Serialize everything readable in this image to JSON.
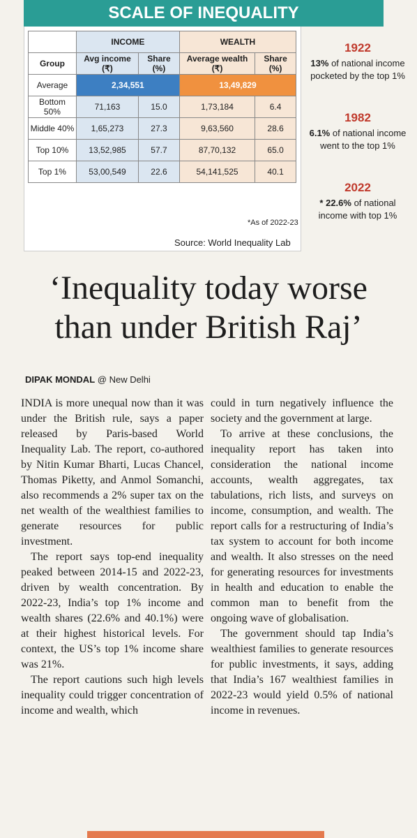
{
  "header": {
    "title": "SCALE OF INEQUALITY"
  },
  "table": {
    "group_headers": [
      "INCOME",
      "WEALTH"
    ],
    "columns": [
      "Group",
      "Avg income (₹)",
      "Share (%)",
      "Average wealth (₹)",
      "Share (%)"
    ],
    "average": {
      "label": "Average",
      "income": "2,34,551",
      "wealth": "13,49,829"
    },
    "rows": [
      [
        "Bottom 50%",
        "71,163",
        "15.0",
        "1,73,184",
        "6.4"
      ],
      [
        "Middle 40%",
        "1,65,273",
        "27.3",
        "9,63,560",
        "28.6"
      ],
      [
        "Top 10%",
        "13,52,985",
        "57.7",
        "87,70,132",
        "65.0"
      ],
      [
        "Top 1%",
        "53,00,549",
        "22.6",
        "54,141,525",
        "40.1"
      ]
    ],
    "note": "*As of 2022-23",
    "source": "Source: World Inequality Lab"
  },
  "sidebar": [
    {
      "year": "1922",
      "highlight": "13%",
      "text": " of national income pocketed by the top 1%"
    },
    {
      "year": "1982",
      "highlight": "6.1%",
      "text": " of national income went to the top 1%"
    },
    {
      "year": "2022",
      "highlight": "* 22.6%",
      "text": " of national income with top 1%"
    }
  ],
  "headline": {
    "lines": [
      "‘Inequality today worse",
      "than under British Raj’"
    ]
  },
  "byline": {
    "author": "DIPAK MONDAL",
    "location": "@ New Delhi"
  },
  "columns": [
    {
      "paragraphs": [
        "INDIA is more unequal now than it was under the British rule, says a paper released by Paris-based World Inequality Lab. The report, co-authored by Nitin Kumar Bharti, Lucas Chancel, Thomas Piketty, and Anmol Somanchi, also recommends a 2% super tax on the net wealth of the wealthiest families to generate resources for public investment.",
        "The report says top-end inequality peaked between 2014-15 and 2022-23, driven by wealth concentration. By 2022-23, India’s top 1% income and wealth shares (22.6% and 40.1%) were at their highest historical levels. For context, the US’s top 1% income share was 21%.",
        "The report cautions such high levels inequality could trigger concentration of income and wealth, which"
      ]
    },
    {
      "paragraphs": [
        "could in turn negatively influence the society and the government at large.",
        "To arrive at these conclusions, the inequality report has taken into consideration the national income accounts, wealth aggregates, tax tabulations, rich lists, and surveys on income, consumption, and wealth. The report calls for a restructuring of India’s tax system to account for both income and wealth. It also stresses on the need for generating resources for investments in health and education to enable the common man to benefit from the ongoing wave of globalisation.",
        "The government should tap India’s wealthiest families to generate resources for public investments, it says, adding that India’s 167 wealthiest families in 2022-23 would yield 0.5% of national income in revenues."
      ]
    }
  ]
}
